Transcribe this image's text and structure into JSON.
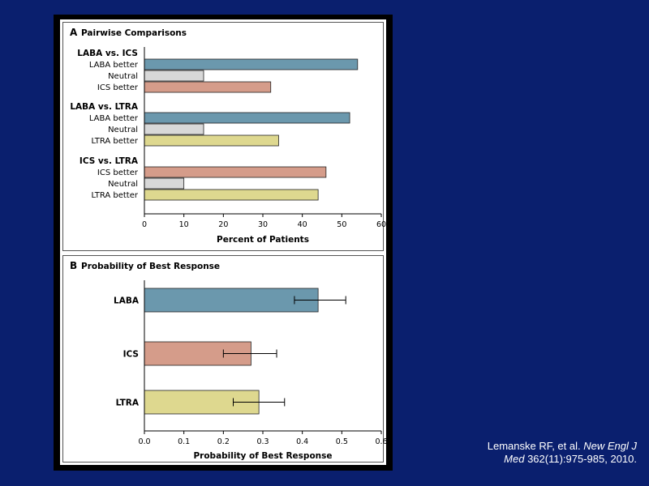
{
  "colors": {
    "background": "#0a1f6e",
    "LABA": "#6b98ad",
    "ICS": "#d59c8a",
    "LTRA": "#ded88f",
    "Neutral": "#d8d8d8"
  },
  "citation": {
    "authors": "Lemanske RF, et al.",
    "journal_line1": "New Engl J",
    "journal_line2": "Med",
    "details": "362(11):975-985, 2010."
  },
  "chart_data": [
    {
      "type": "bar",
      "orientation": "horizontal",
      "panel_letter": "A",
      "title": "Pairwise Comparisons",
      "xlabel": "Percent of Patients",
      "xlim": [
        0,
        60
      ],
      "xticks": [
        0,
        10,
        20,
        30,
        40,
        50,
        60
      ],
      "grid": false,
      "groups": [
        {
          "name": "LABA vs. ICS",
          "bars": [
            {
              "label": "LABA better",
              "value": 54,
              "color_key": "LABA"
            },
            {
              "label": "Neutral",
              "value": 15,
              "color_key": "Neutral"
            },
            {
              "label": "ICS better",
              "value": 32,
              "color_key": "ICS"
            }
          ]
        },
        {
          "name": "LABA vs. LTRA",
          "bars": [
            {
              "label": "LABA better",
              "value": 52,
              "color_key": "LABA"
            },
            {
              "label": "Neutral",
              "value": 15,
              "color_key": "Neutral"
            },
            {
              "label": "LTRA better",
              "value": 34,
              "color_key": "LTRA"
            }
          ]
        },
        {
          "name": "ICS vs. LTRA",
          "bars": [
            {
              "label": "ICS better",
              "value": 46,
              "color_key": "ICS"
            },
            {
              "label": "Neutral",
              "value": 10,
              "color_key": "Neutral"
            },
            {
              "label": "LTRA better",
              "value": 44,
              "color_key": "LTRA"
            }
          ]
        }
      ]
    },
    {
      "type": "bar",
      "orientation": "horizontal",
      "panel_letter": "B",
      "title": "Probability of Best Response",
      "xlabel": "Probability of Best Response",
      "xlim": [
        0,
        0.6
      ],
      "xticks": [
        "0.0",
        "0.1",
        "0.2",
        "0.3",
        "0.4",
        "0.5",
        "0.6"
      ],
      "grid": false,
      "bars": [
        {
          "label": "LABA",
          "value": 0.44,
          "ci": [
            0.38,
            0.51
          ],
          "color_key": "LABA"
        },
        {
          "label": "ICS",
          "value": 0.27,
          "ci": [
            0.2,
            0.335
          ],
          "color_key": "ICS"
        },
        {
          "label": "LTRA",
          "value": 0.29,
          "ci": [
            0.225,
            0.355
          ],
          "color_key": "LTRA"
        }
      ]
    }
  ]
}
